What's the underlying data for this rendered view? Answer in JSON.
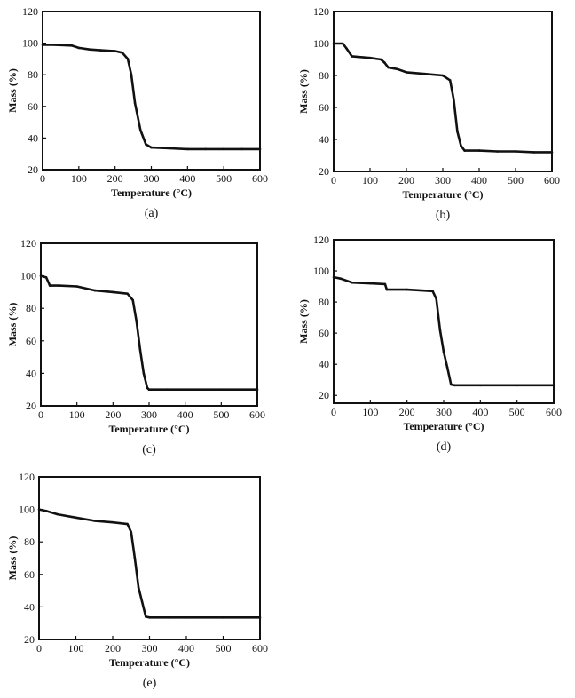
{
  "chart_data": [
    {
      "type": "line",
      "panel_label": "(a)",
      "xlabel": "Temperature (°C)",
      "ylabel": "Mass (%)",
      "xlim": [
        0,
        600
      ],
      "ylim": [
        20,
        120
      ],
      "xticks": [
        0,
        100,
        200,
        300,
        400,
        500,
        600
      ],
      "yticks": [
        20,
        40,
        60,
        80,
        100,
        120
      ],
      "grid": false,
      "x": [
        0,
        30,
        80,
        100,
        130,
        160,
        200,
        220,
        235,
        245,
        255,
        270,
        285,
        300,
        350,
        400,
        450,
        500,
        550,
        600
      ],
      "y": [
        99,
        99,
        98.5,
        97,
        96,
        95.5,
        95,
        94,
        90,
        80,
        62,
        45,
        36,
        34,
        33.5,
        33,
        33,
        33,
        33,
        33
      ]
    },
    {
      "type": "line",
      "panel_label": "(b)",
      "xlabel": "Temperature (°C)",
      "ylabel": "Mass (%)",
      "xlim": [
        0,
        600
      ],
      "ylim": [
        20,
        120
      ],
      "xticks": [
        0,
        100,
        200,
        300,
        400,
        500,
        600
      ],
      "yticks": [
        20,
        40,
        60,
        80,
        100,
        120
      ],
      "grid": false,
      "x": [
        0,
        25,
        35,
        50,
        100,
        130,
        140,
        150,
        175,
        200,
        250,
        300,
        320,
        330,
        340,
        350,
        360,
        400,
        450,
        500,
        550,
        600
      ],
      "y": [
        100,
        100,
        97,
        92,
        91,
        90,
        88,
        85,
        84,
        82,
        81,
        80,
        77,
        65,
        45,
        36,
        33,
        33,
        32.5,
        32.5,
        32,
        32
      ]
    },
    {
      "type": "line",
      "panel_label": "(c)",
      "xlabel": "Temperature (°C)",
      "ylabel": "Mass (%)",
      "xlim": [
        0,
        600
      ],
      "ylim": [
        20,
        120
      ],
      "xticks": [
        0,
        100,
        200,
        300,
        400,
        500,
        600
      ],
      "yticks": [
        20,
        40,
        60,
        80,
        100,
        120
      ],
      "grid": false,
      "x": [
        0,
        15,
        25,
        50,
        100,
        150,
        200,
        240,
        255,
        265,
        275,
        285,
        295,
        300,
        350,
        400,
        500,
        600
      ],
      "y": [
        100,
        99,
        94,
        94,
        93.5,
        91,
        90,
        89,
        85,
        72,
        55,
        40,
        31,
        30,
        30,
        30,
        30,
        30
      ]
    },
    {
      "type": "line",
      "panel_label": "(d)",
      "xlabel": "Temperature (°C)",
      "ylabel": "Mass (%)",
      "xlim": [
        0,
        600
      ],
      "ylim": [
        15,
        120
      ],
      "xticks": [
        0,
        100,
        200,
        300,
        400,
        500,
        600
      ],
      "yticks": [
        20,
        40,
        60,
        80,
        100,
        120
      ],
      "grid": false,
      "x": [
        0,
        20,
        50,
        100,
        140,
        145,
        200,
        270,
        280,
        290,
        300,
        310,
        320,
        330,
        400,
        500,
        600
      ],
      "y": [
        96,
        95,
        92.5,
        92,
        91.5,
        88,
        88,
        87,
        82,
        62,
        48,
        38,
        27,
        26.5,
        26.5,
        26.5,
        26.5
      ]
    },
    {
      "type": "line",
      "panel_label": "(e)",
      "xlabel": "Temperature (°C)",
      "ylabel": "Mass (%)",
      "xlim": [
        0,
        600
      ],
      "ylim": [
        20,
        120
      ],
      "xticks": [
        0,
        100,
        200,
        300,
        400,
        500,
        600
      ],
      "yticks": [
        20,
        40,
        60,
        80,
        100,
        120
      ],
      "grid": false,
      "x": [
        0,
        20,
        50,
        100,
        150,
        200,
        240,
        250,
        260,
        270,
        280,
        290,
        300,
        350,
        400,
        500,
        600
      ],
      "y": [
        100,
        99,
        97,
        95,
        93,
        92,
        91,
        86,
        70,
        52,
        43,
        34,
        33.5,
        33.5,
        33.5,
        33.5,
        33.5
      ]
    }
  ]
}
